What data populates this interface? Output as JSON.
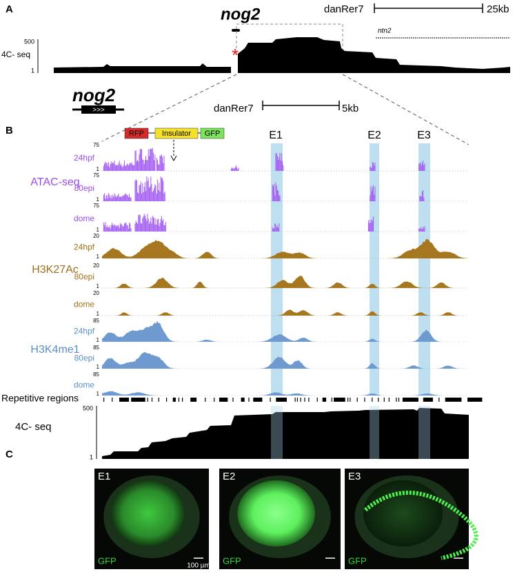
{
  "panel_a": {
    "label": "A",
    "gene": "nog2",
    "scale_genome": "danRer7",
    "scale_length": "25kb",
    "neighbor_gene": "ntn2",
    "track_label": "4C- seq",
    "scale_max": 500,
    "scale_min": 1
  },
  "gene_model": {
    "name": "nog2"
  },
  "panel_b": {
    "label": "B",
    "scale_genome": "danRer7",
    "scale_length": "5kb",
    "construct": [
      "RFP",
      "Insulator",
      "GFP"
    ],
    "enhancers": [
      "E1",
      "E2",
      "E3"
    ],
    "groups": [
      {
        "name": "ATAC-seq",
        "tracks": [
          {
            "stage": "24hpf",
            "max": 75,
            "min": 1
          },
          {
            "stage": "80epi",
            "max": 75,
            "min": 1
          },
          {
            "stage": "dome",
            "max": 75,
            "min": 1
          }
        ]
      },
      {
        "name": "H3K27Ac",
        "tracks": [
          {
            "stage": "24hpf",
            "max": 20,
            "min": 1
          },
          {
            "stage": "80epi",
            "max": 20,
            "min": 1
          },
          {
            "stage": "dome",
            "max": 20,
            "min": 1
          }
        ]
      },
      {
        "name": "H3K4me1",
        "tracks": [
          {
            "stage": "24hpf",
            "max": 85,
            "min": 1
          },
          {
            "stage": "80epi",
            "max": 85,
            "min": 1
          },
          {
            "stage": "dome",
            "max": 85,
            "min": 1
          }
        ]
      }
    ],
    "repeats_label": "Repetitive regions",
    "c4_label": "4C- seq",
    "c4_max": 500,
    "c4_min": 1
  },
  "panel_c": {
    "label": "C",
    "images": [
      {
        "title": "E1",
        "channel": "GFP",
        "scale_bar": "100 µm"
      },
      {
        "title": "E2",
        "channel": "GFP"
      },
      {
        "title": "E3",
        "channel": "GFP"
      }
    ]
  }
}
